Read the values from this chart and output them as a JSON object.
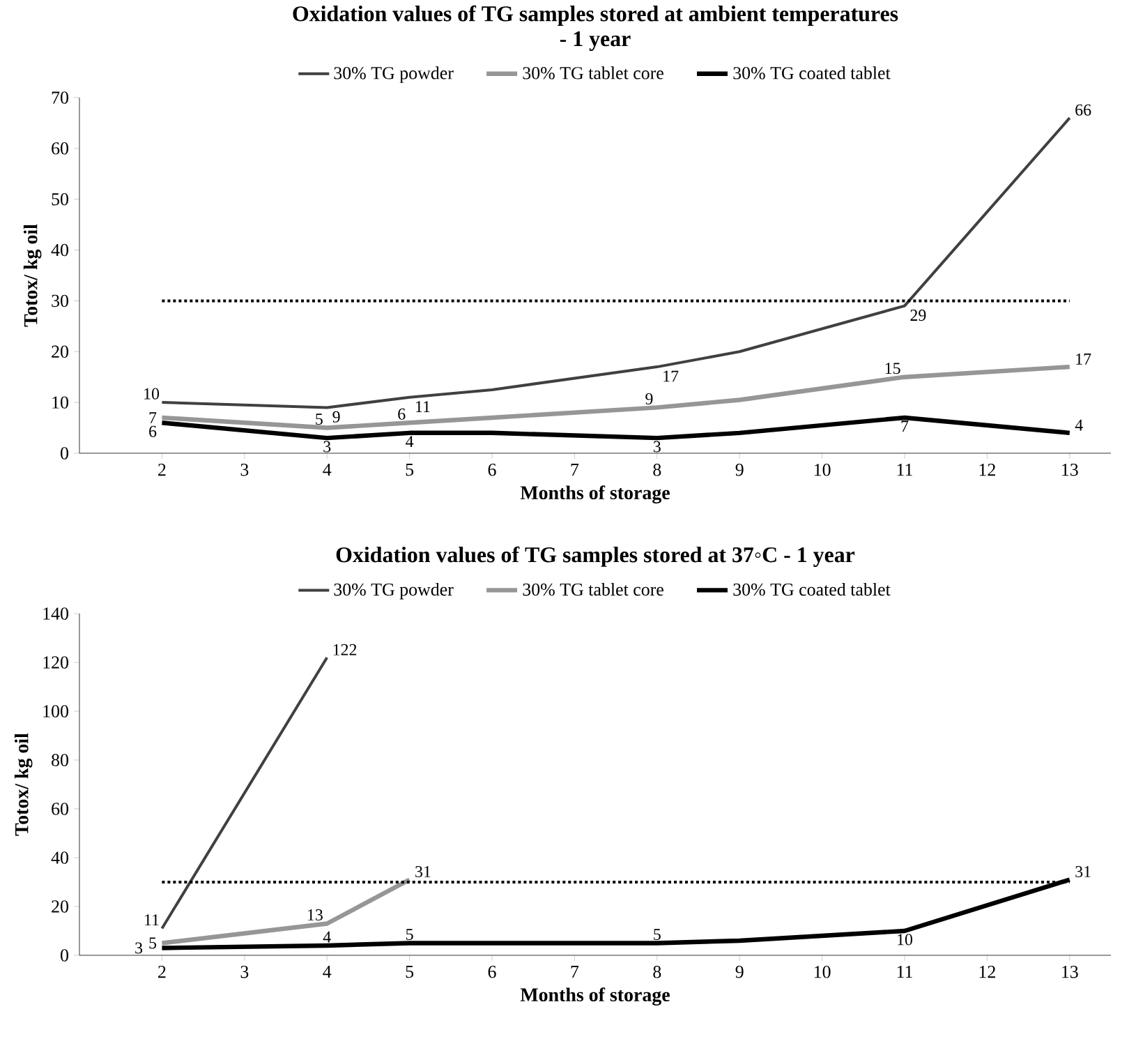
{
  "chart_data": [
    {
      "type": "line",
      "title": "Oxidation values of TG samples stored at ambient temperatures\n- 1 year",
      "xlabel": "Months of storage",
      "ylabel": "Totox/ kg oil",
      "xlim": [
        1,
        13.5
      ],
      "xticks": [
        2,
        3,
        4,
        5,
        6,
        7,
        8,
        9,
        10,
        11,
        12,
        13
      ],
      "ylim": [
        0,
        70
      ],
      "yticks": [
        0,
        10,
        20,
        30,
        40,
        50,
        60,
        70
      ],
      "grid": false,
      "legend": "top",
      "marker": "none",
      "ref_lines": [
        {
          "axis": "y",
          "value": 30,
          "color": "#000000",
          "line_style": "dotted"
        }
      ],
      "series": [
        {
          "name": "30% TG powder",
          "color": "#404040",
          "x": [
            2,
            4,
            5,
            6,
            8,
            9,
            11,
            13
          ],
          "values": [
            10,
            9,
            11,
            12.5,
            17,
            20,
            29,
            66
          ],
          "value_labels": [
            "10",
            "9",
            "11",
            null,
            "17",
            null,
            "29",
            "66"
          ]
        },
        {
          "name": "30% TG tablet core",
          "color": "#969696",
          "x": [
            2,
            4,
            5,
            6,
            8,
            9,
            11,
            13
          ],
          "values": [
            7,
            5,
            6,
            7,
            9,
            10.5,
            15,
            17
          ],
          "value_labels": [
            "7",
            "5",
            "6",
            null,
            "9",
            null,
            "15",
            "17"
          ]
        },
        {
          "name": "30% TG coated tablet",
          "color": "#000000",
          "x": [
            2,
            4,
            5,
            6,
            8,
            9,
            11,
            13
          ],
          "values": [
            6,
            3,
            4,
            4,
            3,
            4,
            7,
            4
          ],
          "value_labels": [
            "6",
            "3",
            "4",
            null,
            "3",
            null,
            "7",
            "4"
          ]
        }
      ]
    },
    {
      "type": "line",
      "title": "Oxidation values of TG samples stored at 37◦C - 1 year",
      "xlabel": "Months of storage",
      "ylabel": "Totox/ kg oil",
      "xlim": [
        1,
        13.5
      ],
      "xticks": [
        2,
        3,
        4,
        5,
        6,
        7,
        8,
        9,
        10,
        11,
        12,
        13
      ],
      "ylim": [
        0,
        140
      ],
      "yticks": [
        0,
        20,
        40,
        60,
        80,
        100,
        120,
        140
      ],
      "grid": false,
      "legend": "top",
      "marker": "none",
      "ref_lines": [
        {
          "axis": "y",
          "value": 30,
          "color": "#000000",
          "line_style": "dotted"
        }
      ],
      "series": [
        {
          "name": "30% TG powder",
          "color": "#404040",
          "x": [
            2,
            4
          ],
          "values": [
            11,
            122
          ],
          "value_labels": [
            "11",
            "122"
          ]
        },
        {
          "name": "30% TG tablet core",
          "color": "#969696",
          "x": [
            2,
            4,
            5
          ],
          "values": [
            5,
            13,
            31
          ],
          "value_labels": [
            "5",
            "13",
            "31"
          ]
        },
        {
          "name": "30% TG coated tablet",
          "color": "#000000",
          "x": [
            2,
            4,
            5,
            8,
            9,
            11,
            13
          ],
          "values": [
            3,
            4,
            5,
            5,
            6,
            10,
            31
          ],
          "value_labels": [
            "3",
            "4",
            "5",
            "5",
            null,
            "10",
            "31"
          ]
        }
      ]
    }
  ]
}
